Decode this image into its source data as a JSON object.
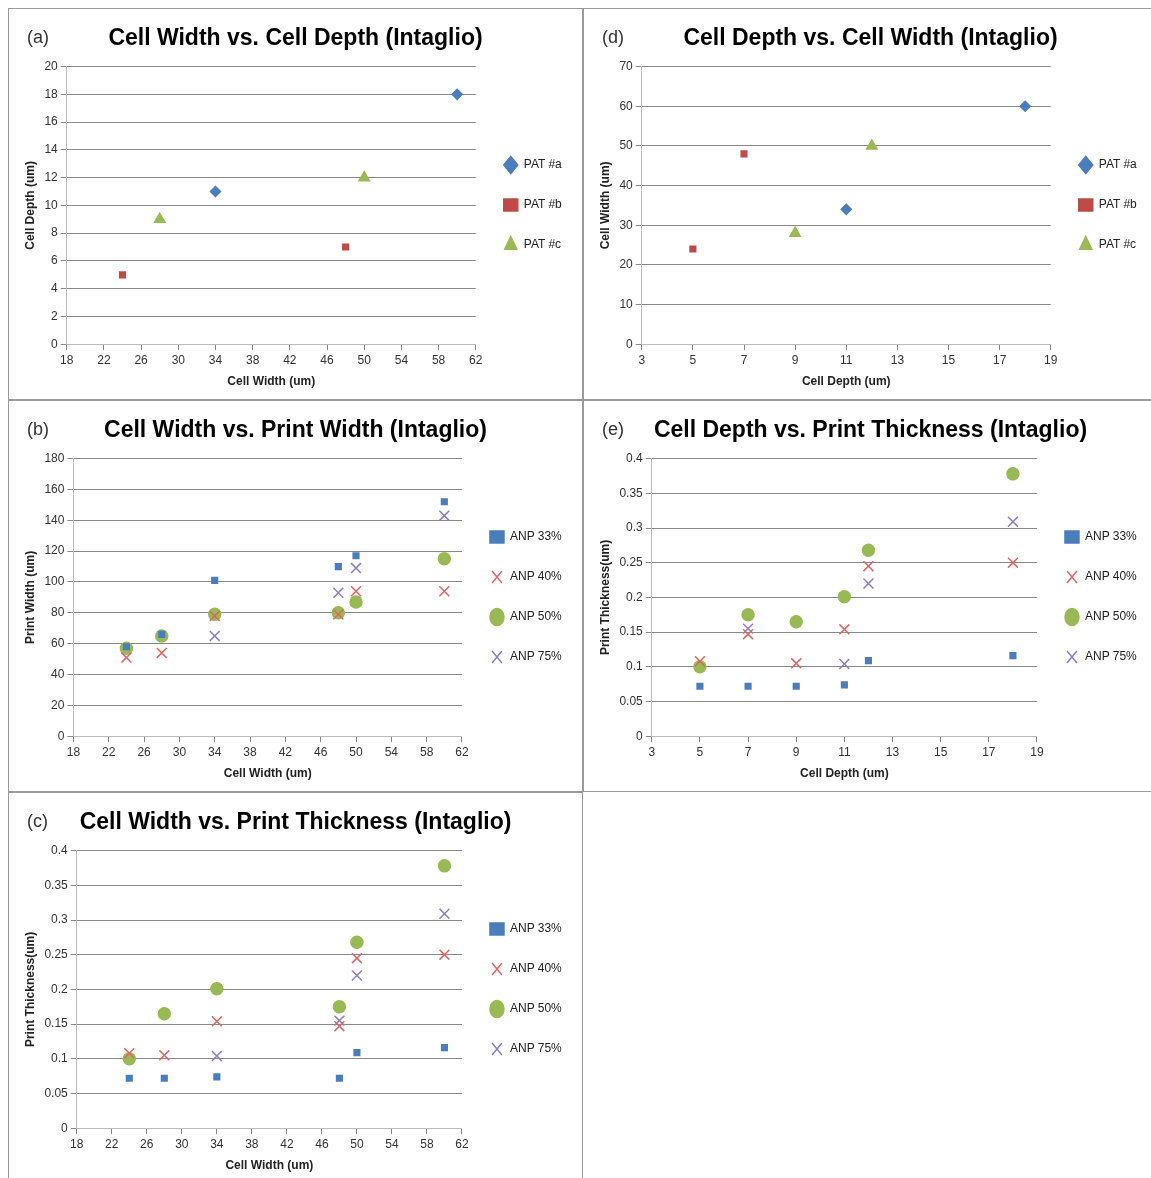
{
  "chart_data": [
    {
      "type": "scatter",
      "title": "Cell Width vs. Cell Depth (Intaglio)",
      "annotations": [
        "(a)"
      ],
      "xlabel": "Cell Width (um)",
      "ylabel": "Cell Depth (um)",
      "xlim": [
        18,
        62
      ],
      "xticks": [
        18,
        22,
        26,
        30,
        34,
        38,
        42,
        46,
        50,
        54,
        58,
        62
      ],
      "ylim": [
        0,
        20
      ],
      "yticks": [
        0,
        2,
        4,
        6,
        8,
        10,
        12,
        14,
        16,
        18,
        20
      ],
      "grid": "y",
      "legend": "right",
      "series": [
        {
          "name": "PAT #a",
          "color": "#4a7ebb",
          "marker": "diamond",
          "x": [
            34,
            60
          ],
          "values": [
            11,
            18
          ]
        },
        {
          "name": "PAT #b",
          "color": "#be4b48",
          "marker": "square",
          "x": [
            24,
            48
          ],
          "values": [
            5,
            7
          ]
        },
        {
          "name": "PAT #c",
          "color": "#98b954",
          "marker": "triangle",
          "x": [
            28,
            50
          ],
          "values": [
            9,
            12
          ]
        }
      ]
    },
    {
      "type": "scatter",
      "title": "Cell Depth vs. Cell Width (Intaglio)",
      "annotations": [
        "(d)"
      ],
      "xlabel": "Cell Depth (um)",
      "ylabel": "Cell Width (um)",
      "xlim": [
        3,
        19
      ],
      "xticks": [
        3,
        5,
        7,
        9,
        11,
        13,
        15,
        17,
        19
      ],
      "ylim": [
        0,
        70
      ],
      "yticks": [
        0,
        10,
        20,
        30,
        40,
        50,
        60,
        70
      ],
      "grid": "y",
      "legend": "right",
      "series": [
        {
          "name": "PAT #a",
          "color": "#4a7ebb",
          "marker": "diamond",
          "x": [
            11,
            18
          ],
          "values": [
            34,
            60
          ]
        },
        {
          "name": "PAT #b",
          "color": "#be4b48",
          "marker": "square",
          "x": [
            5,
            7
          ],
          "values": [
            24,
            48
          ]
        },
        {
          "name": "PAT #c",
          "color": "#98b954",
          "marker": "triangle",
          "x": [
            9,
            12
          ],
          "values": [
            28,
            50
          ]
        }
      ]
    },
    {
      "type": "scatter",
      "title": "Cell Width vs. Print Width (Intaglio)",
      "annotations": [
        "(b)"
      ],
      "xlabel": "Cell Width (um)",
      "ylabel": "Print Width (um)",
      "xlim": [
        18,
        62
      ],
      "xticks": [
        18,
        22,
        26,
        30,
        34,
        38,
        42,
        46,
        50,
        54,
        58,
        62
      ],
      "ylim": [
        0,
        180
      ],
      "yticks": [
        0,
        20,
        40,
        60,
        80,
        100,
        120,
        140,
        160,
        180
      ],
      "grid": "y",
      "legend": "right",
      "series": [
        {
          "name": "ANP 33%",
          "color": "#4a7ebb",
          "marker": "square",
          "x": [
            24,
            28,
            34,
            48,
            50,
            60
          ],
          "values": [
            58,
            66,
            101,
            110,
            117,
            152
          ]
        },
        {
          "name": "ANP 40%",
          "color": "#e06666",
          "marker": "cross",
          "x": [
            24,
            28,
            34,
            48,
            50,
            60
          ],
          "values": [
            51,
            54,
            78,
            79,
            94,
            94
          ]
        },
        {
          "name": "ANP 50%",
          "color": "#98b954",
          "marker": "circle",
          "x": [
            24,
            28,
            34,
            48,
            50,
            60
          ],
          "values": [
            57,
            65,
            79,
            80,
            87,
            115
          ]
        },
        {
          "name": "ANP 75%",
          "color": "#8e7cc3",
          "marker": "cross",
          "x": [
            34,
            48,
            50,
            60
          ],
          "values": [
            65,
            93,
            109,
            143
          ]
        }
      ]
    },
    {
      "type": "scatter",
      "title": "Cell Depth vs. Print Thickness (Intaglio)",
      "annotations": [
        "(e)"
      ],
      "xlabel": "Cell Depth (um)",
      "ylabel": "Print Thickness(um)",
      "xlim": [
        3,
        19
      ],
      "xticks": [
        3,
        5,
        7,
        9,
        11,
        13,
        15,
        17,
        19
      ],
      "ylim": [
        0,
        0.4
      ],
      "yticks": [
        0,
        0.05,
        0.1,
        0.15,
        0.2,
        0.25,
        0.3,
        0.35,
        0.4
      ],
      "grid": "y",
      "legend": "right",
      "series": [
        {
          "name": "ANP 33%",
          "color": "#4a7ebb",
          "marker": "square",
          "x": [
            5,
            7,
            9,
            11,
            12,
            18
          ],
          "values": [
            0.072,
            0.072,
            0.072,
            0.074,
            0.109,
            0.116
          ]
        },
        {
          "name": "ANP 40%",
          "color": "#e06666",
          "marker": "cross",
          "x": [
            5,
            7,
            9,
            11,
            12,
            18
          ],
          "values": [
            0.108,
            0.147,
            0.105,
            0.154,
            0.245,
            0.25
          ]
        },
        {
          "name": "ANP 50%",
          "color": "#98b954",
          "marker": "circle",
          "x": [
            5,
            7,
            9,
            11,
            12,
            18
          ],
          "values": [
            0.1,
            0.175,
            0.165,
            0.201,
            0.268,
            0.378
          ]
        },
        {
          "name": "ANP 75%",
          "color": "#8e7cc3",
          "marker": "cross",
          "x": [
            7,
            11,
            12,
            18
          ],
          "values": [
            0.155,
            0.104,
            0.22,
            0.309
          ]
        }
      ]
    },
    {
      "type": "scatter",
      "title": "Cell Width vs. Print Thickness (Intaglio)",
      "annotations": [
        "(c)"
      ],
      "xlabel": "Cell Width (um)",
      "ylabel": "Print Thickness(um)",
      "xlim": [
        18,
        62
      ],
      "xticks": [
        18,
        22,
        26,
        30,
        34,
        38,
        42,
        46,
        50,
        54,
        58,
        62
      ],
      "ylim": [
        0,
        0.4
      ],
      "yticks": [
        0,
        0.05,
        0.1,
        0.15,
        0.2,
        0.25,
        0.3,
        0.35,
        0.4
      ],
      "grid": "y",
      "legend": "right",
      "series": [
        {
          "name": "ANP 33%",
          "color": "#4a7ebb",
          "marker": "square",
          "x": [
            24,
            28,
            34,
            48,
            50,
            60
          ],
          "values": [
            0.072,
            0.072,
            0.074,
            0.072,
            0.109,
            0.116
          ]
        },
        {
          "name": "ANP 40%",
          "color": "#e06666",
          "marker": "cross",
          "x": [
            24,
            28,
            34,
            48,
            50,
            60
          ],
          "values": [
            0.108,
            0.105,
            0.154,
            0.147,
            0.245,
            0.25
          ]
        },
        {
          "name": "ANP 50%",
          "color": "#98b954",
          "marker": "circle",
          "x": [
            24,
            28,
            34,
            48,
            50,
            60
          ],
          "values": [
            0.1,
            0.165,
            0.201,
            0.175,
            0.268,
            0.378
          ]
        },
        {
          "name": "ANP 75%",
          "color": "#8e7cc3",
          "marker": "cross",
          "x": [
            34,
            48,
            50,
            60
          ],
          "values": [
            0.104,
            0.155,
            0.22,
            0.309
          ]
        }
      ]
    }
  ]
}
